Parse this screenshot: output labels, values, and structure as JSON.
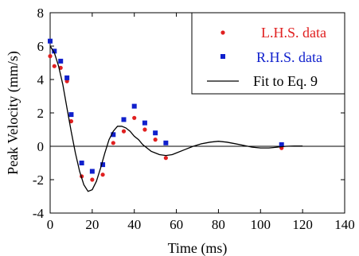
{
  "chart_data": {
    "type": "scatter",
    "title": "",
    "xlabel": "Time (ms)",
    "ylabel": "Peak Velocity (mm/s)",
    "xlim": [
      0,
      140
    ],
    "ylim": [
      -4,
      8
    ],
    "xticks": [
      0,
      20,
      40,
      60,
      80,
      100,
      120,
      140
    ],
    "yticks": [
      -4,
      -2,
      0,
      2,
      4,
      6,
      8
    ],
    "grid": false,
    "legend_position": "top-right",
    "series": [
      {
        "name": "L.H.S. data",
        "kind": "scatter",
        "marker": "circle",
        "color": "#e02020",
        "points": [
          [
            0,
            5.4
          ],
          [
            2,
            4.8
          ],
          [
            5,
            4.7
          ],
          [
            8,
            3.9
          ],
          [
            10,
            1.5
          ],
          [
            15,
            -1.8
          ],
          [
            20,
            -2.0
          ],
          [
            25,
            -1.7
          ],
          [
            30,
            0.2
          ],
          [
            35,
            0.9
          ],
          [
            40,
            1.7
          ],
          [
            45,
            1.0
          ],
          [
            50,
            0.4
          ],
          [
            55,
            -0.7
          ],
          [
            110,
            -0.1
          ]
        ]
      },
      {
        "name": "R.H.S. data",
        "kind": "scatter",
        "marker": "square",
        "color": "#1020cc",
        "points": [
          [
            0,
            6.3
          ],
          [
            2,
            5.7
          ],
          [
            5,
            5.1
          ],
          [
            8,
            4.1
          ],
          [
            10,
            1.9
          ],
          [
            15,
            -1.0
          ],
          [
            20,
            -1.5
          ],
          [
            25,
            -1.1
          ],
          [
            30,
            0.7
          ],
          [
            35,
            1.6
          ],
          [
            40,
            2.4
          ],
          [
            45,
            1.4
          ],
          [
            50,
            0.8
          ],
          [
            55,
            0.2
          ],
          [
            110,
            0.1
          ]
        ]
      },
      {
        "name": "Fit to Eq. 9",
        "kind": "line",
        "color": "#000000",
        "points": [
          [
            0,
            6.0
          ],
          [
            2,
            5.6
          ],
          [
            4,
            4.8
          ],
          [
            6,
            3.7
          ],
          [
            8,
            2.3
          ],
          [
            10,
            0.9
          ],
          [
            12,
            -0.4
          ],
          [
            14,
            -1.5
          ],
          [
            16,
            -2.3
          ],
          [
            18,
            -2.7
          ],
          [
            20,
            -2.6
          ],
          [
            22,
            -2.1
          ],
          [
            24,
            -1.3
          ],
          [
            26,
            -0.4
          ],
          [
            28,
            0.4
          ],
          [
            30,
            0.9
          ],
          [
            32,
            1.2
          ],
          [
            34,
            1.2
          ],
          [
            36,
            1.1
          ],
          [
            38,
            0.9
          ],
          [
            40,
            0.6
          ],
          [
            42,
            0.4
          ],
          [
            44,
            0.1
          ],
          [
            46,
            -0.1
          ],
          [
            48,
            -0.3
          ],
          [
            50,
            -0.4
          ],
          [
            52,
            -0.5
          ],
          [
            55,
            -0.55
          ],
          [
            58,
            -0.5
          ],
          [
            60,
            -0.4
          ],
          [
            64,
            -0.2
          ],
          [
            68,
            0.0
          ],
          [
            72,
            0.15
          ],
          [
            76,
            0.25
          ],
          [
            80,
            0.3
          ],
          [
            84,
            0.25
          ],
          [
            88,
            0.15
          ],
          [
            92,
            0.05
          ],
          [
            96,
            -0.05
          ],
          [
            100,
            -0.1
          ],
          [
            104,
            -0.1
          ],
          [
            108,
            -0.05
          ],
          [
            112,
            0.0
          ],
          [
            116,
            0.02
          ],
          [
            120,
            0.02
          ]
        ]
      }
    ]
  }
}
